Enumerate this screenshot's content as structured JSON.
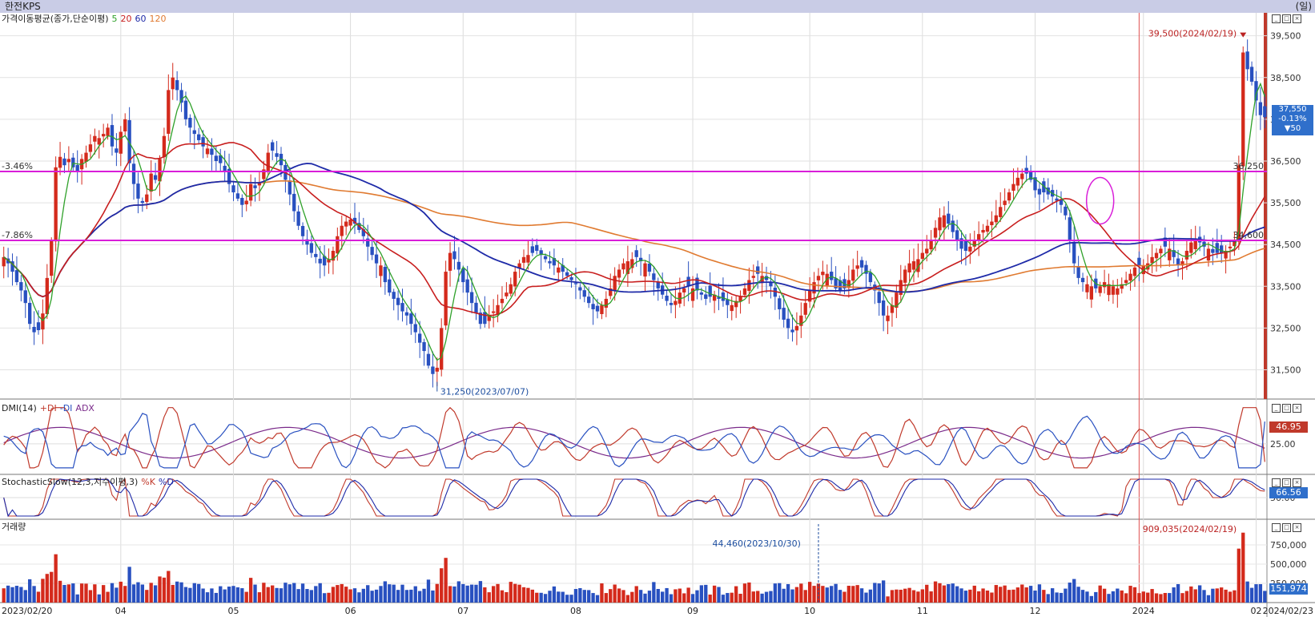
{
  "title": "한전KPS",
  "period_label": "(일)",
  "panels": {
    "price": {
      "legend_name": "가격이동평균(종가,단순이평)",
      "ma_labels": [
        "5",
        "20",
        "60",
        "120"
      ]
    },
    "dmi": {
      "legend_name": "DMI(14)",
      "series_labels": [
        "+DI",
        "-DI",
        "ADX"
      ],
      "current": "46.95",
      "axis_label": "25.00"
    },
    "stochastic": {
      "legend_name": "StochasticSlow(12,3,지수이평,3)",
      "series_labels": [
        "%K",
        "%D"
      ],
      "current": "66.56",
      "axis_label": "50.00"
    },
    "volume": {
      "legend_name": "거래량",
      "current": "151,974",
      "axis_labels": [
        "750,000",
        "500,000",
        "250,000"
      ]
    }
  },
  "price_box": {
    "price": "37,550",
    "change_pct": "-0.13%",
    "change": "▼50"
  },
  "annotations": {
    "high": "39,500(2024/02/19)",
    "low": "31,250(2023/07/07)",
    "vol_high": "909,035(2024/02/19)",
    "vol_mark": "44,460(2023/10/30)",
    "line1_pct": "-3.46%",
    "line1_val": "36,250",
    "line2_pct": "-7.86%",
    "line2_val": "34,600"
  },
  "colors": {
    "up": "#d42a1c",
    "down": "#2850c0",
    "ma5": "#2fa12a",
    "ma20": "#c81e1e",
    "ma60": "#1e2aa8",
    "ma120": "#e07a30",
    "hline": "#d91ed9",
    "accent_box": "#2f6fcb"
  },
  "chart_data": [
    {
      "type": "candlestick",
      "subtype": "price with moving averages",
      "title": "가격이동평균(종가,단순이평)",
      "x_start": "2023/02/20",
      "x_end": "2024/02/23",
      "x_ticks": [
        "2023/02/20",
        "04",
        "05",
        "06",
        "07",
        "08",
        "09",
        "10",
        "11",
        "12",
        "2024",
        "02",
        "2024/02/23"
      ],
      "y_ticks": [
        31500,
        32500,
        33500,
        34500,
        35500,
        36500,
        37500,
        38500,
        39500
      ],
      "ylim": [
        30800,
        40050
      ],
      "closes": [
        34200,
        34050,
        33850,
        33600,
        33400,
        33100,
        32600,
        32400,
        32450,
        32850,
        33700,
        34600,
        36350,
        36600,
        36400,
        36550,
        36350,
        36250,
        36550,
        36700,
        36900,
        37100,
        37050,
        37150,
        37300,
        36850,
        36700,
        37200,
        37500,
        36450,
        35950,
        35600,
        35500,
        35700,
        36200,
        36050,
        36550,
        37100,
        38200,
        38500,
        38200,
        37900,
        37500,
        37300,
        37150,
        37000,
        36850,
        36800,
        36650,
        36500,
        36450,
        36250,
        35950,
        35750,
        35600,
        35450,
        35550,
        35950,
        35850,
        36000,
        36300,
        36700,
        36750,
        36600,
        36400,
        36050,
        35700,
        35300,
        34950,
        34700,
        34500,
        34300,
        34200,
        34050,
        34000,
        34150,
        34350,
        34700,
        34950,
        35050,
        35100,
        35000,
        34850,
        34700,
        34450,
        34250,
        34050,
        34000,
        33600,
        33350,
        33200,
        33050,
        32900,
        32800,
        32600,
        32400,
        32150,
        31950,
        31600,
        31400,
        31550,
        32500,
        33850,
        34300,
        34150,
        33900,
        33600,
        33350,
        33100,
        32850,
        32600,
        32600,
        32800,
        32900,
        33050,
        33200,
        33350,
        33550,
        33850,
        34050,
        34200,
        34250,
        34300,
        34350,
        34250,
        34150,
        34050,
        34000,
        33950,
        33850,
        33750,
        33650,
        33550,
        33400,
        33250,
        33100,
        32950,
        32900,
        33050,
        33200,
        33450,
        33750,
        33900,
        34050,
        34100,
        34150,
        34200,
        34100,
        34050,
        33850,
        33650,
        33450,
        33300,
        33150,
        33050,
        33150,
        33350,
        33450,
        33500,
        33450,
        33400,
        33300,
        33200,
        33250,
        33300,
        33200,
        33150,
        33050,
        33050,
        33150,
        33250,
        33450,
        33650,
        33750,
        33800,
        33750,
        33650,
        33500,
        33250,
        32950,
        32700,
        32500,
        32400,
        32550,
        32800,
        33100,
        33400,
        33600,
        33750,
        33850,
        33800,
        33650,
        33450,
        33400,
        33450,
        33650,
        33900,
        34000,
        33950,
        33800,
        33600,
        33400,
        33100,
        32800,
        32800,
        33050,
        33350,
        33650,
        33900,
        34050,
        34100,
        34150,
        34300,
        34400,
        34600,
        34900,
        35150,
        35200,
        35000,
        34800,
        34600,
        34400,
        34350,
        34450,
        34600,
        34750,
        34850,
        34950,
        35050,
        35200,
        35400,
        35550,
        35750,
        35950,
        36100,
        36200,
        36200,
        36050,
        35800,
        35700,
        35750,
        35700,
        35650,
        35550,
        35450,
        35200,
        34600,
        34050,
        33700,
        33600,
        33550,
        33500,
        33450,
        33500,
        33600,
        33550,
        33500,
        33450,
        33550,
        33650,
        33800,
        33950,
        34000,
        34000,
        34050,
        34200,
        34300,
        34400,
        34450,
        34400,
        34200,
        34000,
        34100,
        34350,
        34550,
        34600,
        34550,
        34450,
        34400,
        34300,
        34300,
        34300,
        34350,
        34450,
        34600,
        36400,
        39100,
        38700,
        38400,
        37950,
        37600,
        37550
      ],
      "ma_periods": [
        5,
        20,
        60,
        120
      ],
      "high_label": {
        "value": 39500,
        "date": "2024/02/19"
      },
      "low_label": {
        "value": 31250,
        "date": "2023/07/07"
      },
      "horizontal_lines": [
        {
          "value": 36250,
          "pct": "-3.46%"
        },
        {
          "value": 34600,
          "pct": "-7.86%"
        }
      ],
      "last": {
        "close": 37550,
        "change": -50,
        "change_pct": -0.13
      },
      "grid": true
    },
    {
      "type": "line",
      "title": "DMI(14)",
      "series": [
        {
          "name": "+DI"
        },
        {
          "name": "-DI"
        },
        {
          "name": "ADX"
        }
      ],
      "last": 46.95,
      "y_ticks": [
        25
      ]
    },
    {
      "type": "line",
      "title": "StochasticSlow(12,3,지수이평,3)",
      "series": [
        {
          "name": "%K"
        },
        {
          "name": "%D"
        }
      ],
      "last": 66.56,
      "y_ticks": [
        50
      ]
    },
    {
      "type": "bar",
      "title": "거래량",
      "ylim": [
        0,
        1000000
      ],
      "y_ticks": [
        250000,
        500000,
        750000
      ],
      "max_label": {
        "value": 909035,
        "date": "2024/02/19"
      },
      "marker": {
        "value": 44460,
        "date": "2023/10/30"
      },
      "last": 151974
    }
  ]
}
